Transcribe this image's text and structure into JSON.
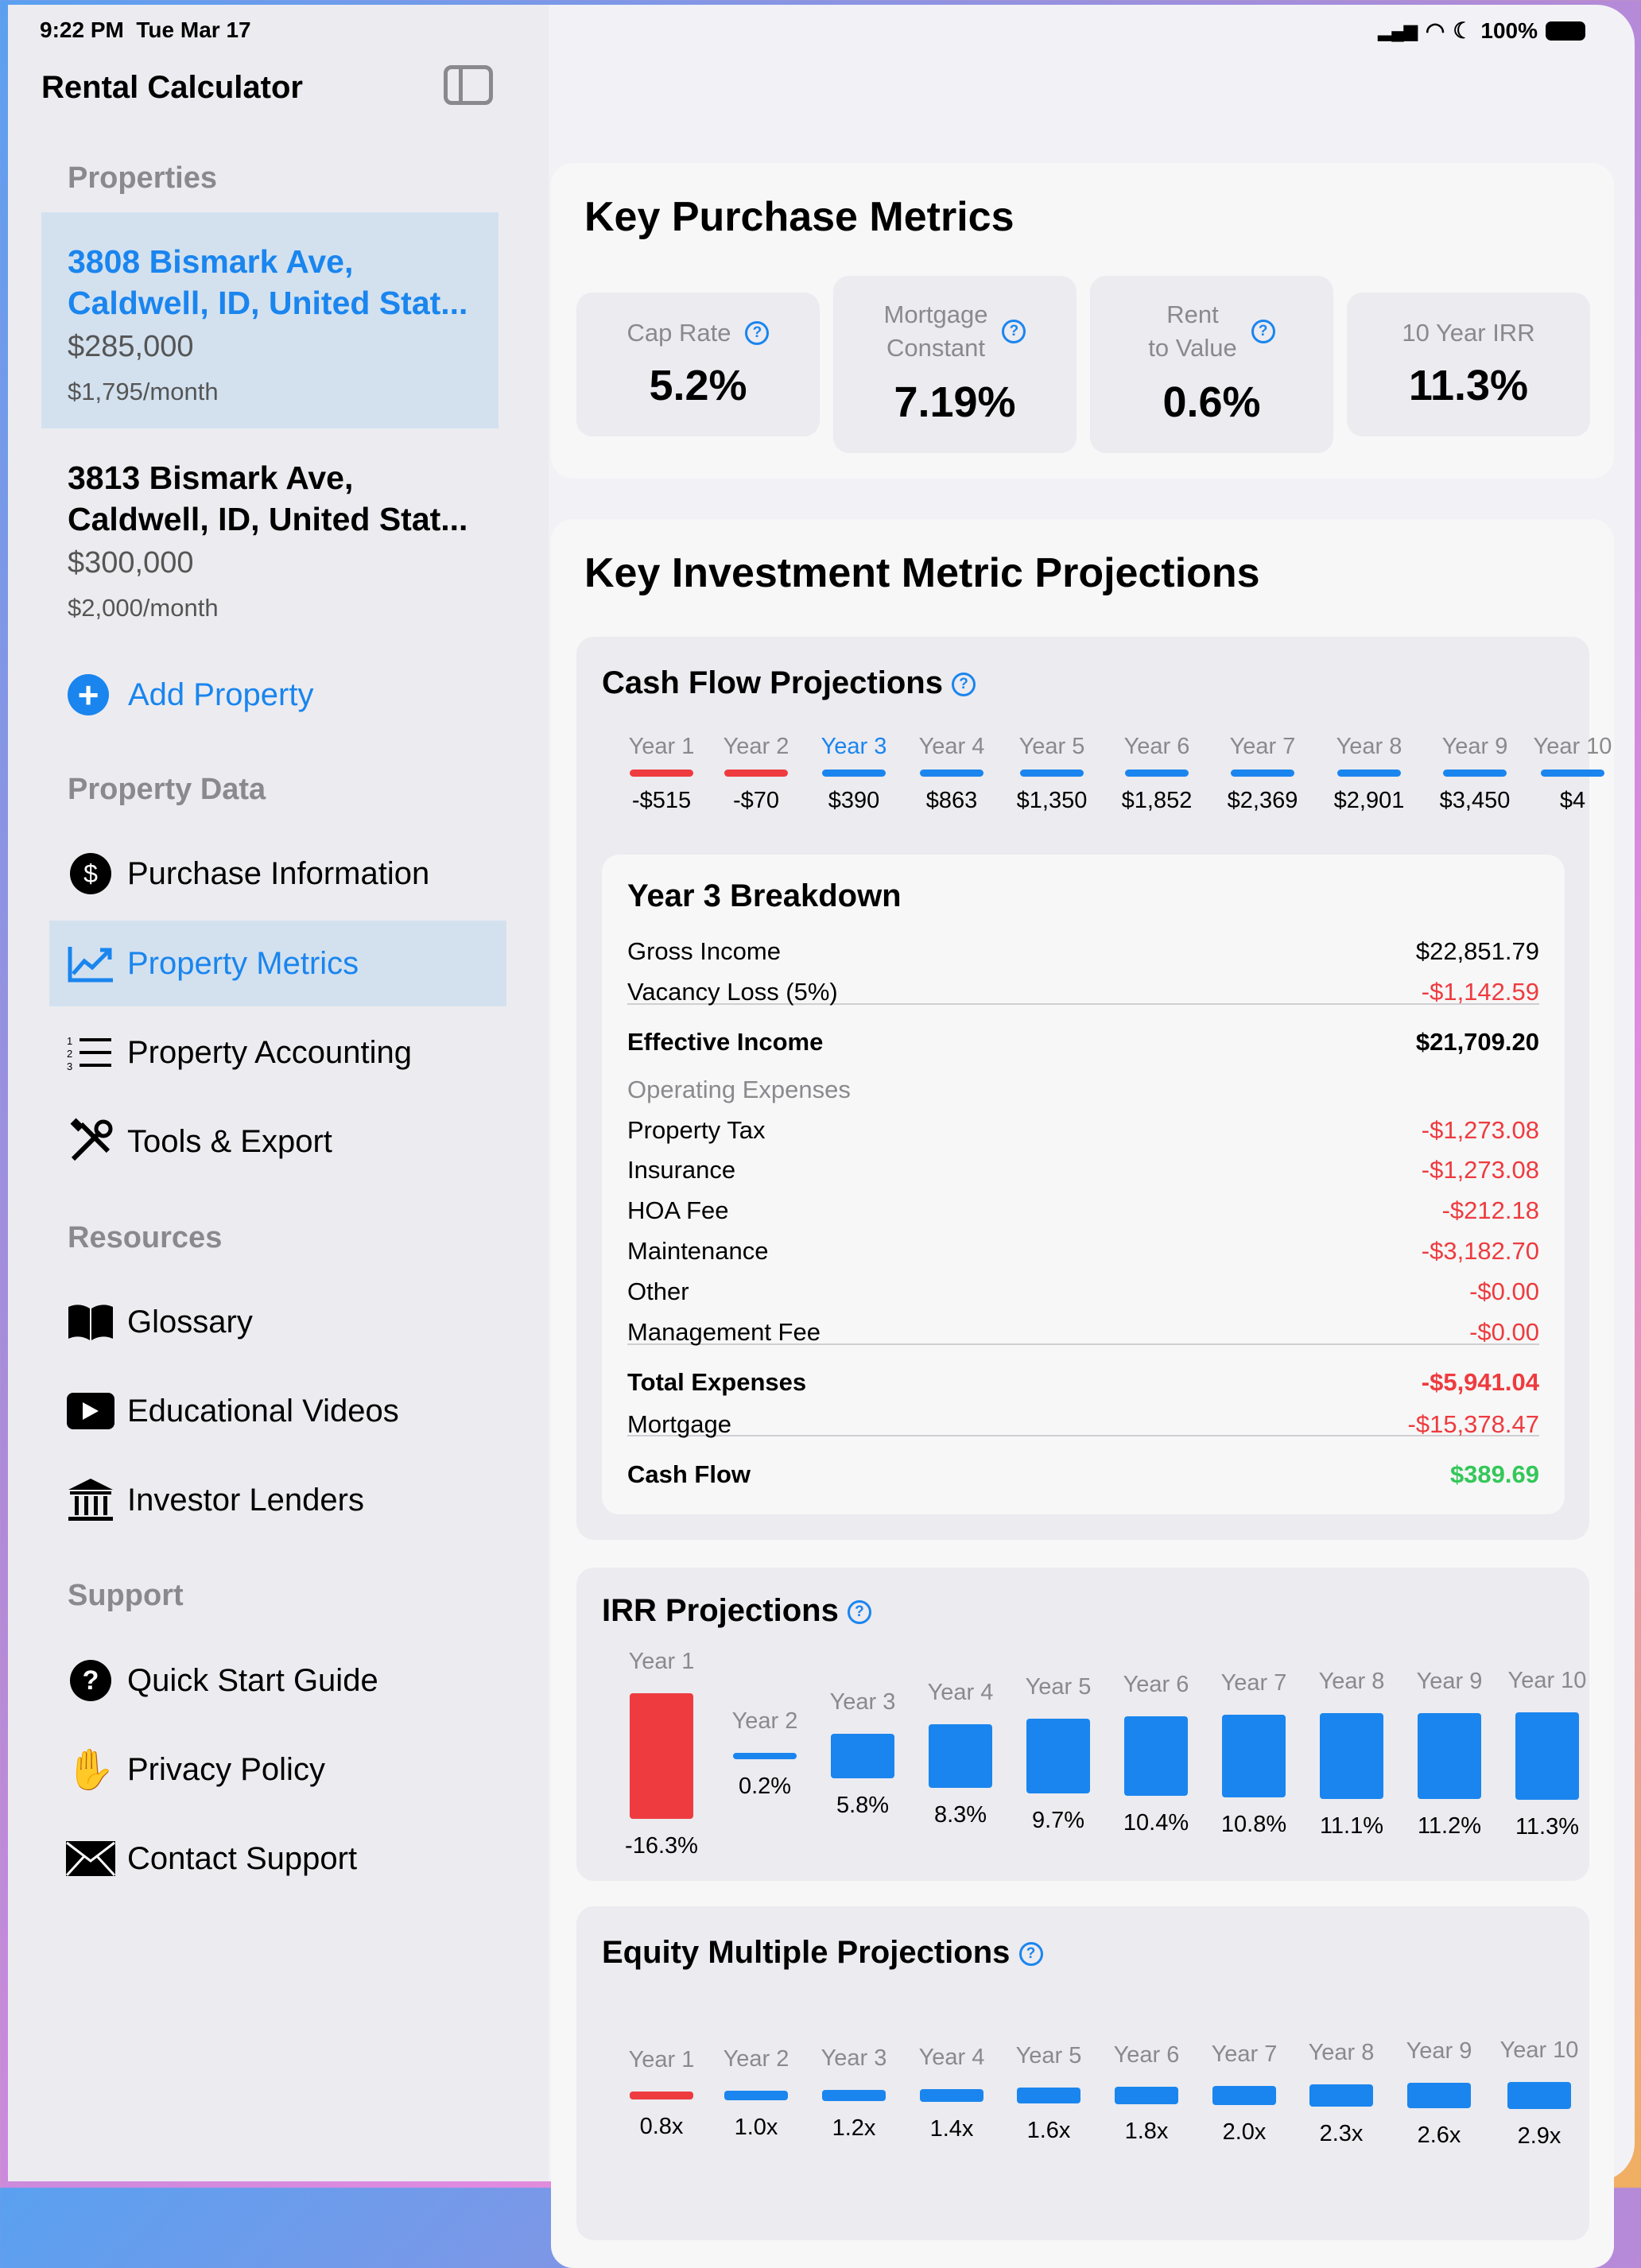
{
  "status": {
    "time": "9:22 PM",
    "date": "Tue Mar 17",
    "battery": "100%"
  },
  "sidebar": {
    "title": "Rental Calculator",
    "properties_header": "Properties",
    "properties": [
      {
        "address1": "3808 Bismark Ave,",
        "address2": "Caldwell, ID, United Stat...",
        "price": "$285,000",
        "rent": "$1,795/month",
        "selected": true
      },
      {
        "address1": "3813 Bismark Ave,",
        "address2": "Caldwell, ID, United Stat...",
        "price": "$300,000",
        "rent": "$2,000/month",
        "selected": false
      }
    ],
    "add_property": "Add Property",
    "property_data_header": "Property Data",
    "property_data": [
      {
        "label": "Purchase Information",
        "icon": "dollar-circle-icon"
      },
      {
        "label": "Property Metrics",
        "icon": "chart-line-icon",
        "selected": true
      },
      {
        "label": "Property Accounting",
        "icon": "numbered-list-icon"
      },
      {
        "label": "Tools & Export",
        "icon": "tools-icon"
      }
    ],
    "resources_header": "Resources",
    "resources": [
      {
        "label": "Glossary",
        "icon": "book-icon"
      },
      {
        "label": "Educational Videos",
        "icon": "play-icon"
      },
      {
        "label": "Investor Lenders",
        "icon": "bank-icon"
      }
    ],
    "support_header": "Support",
    "support": [
      {
        "label": "Quick Start Guide",
        "icon": "question-circle-icon"
      },
      {
        "label": "Privacy Policy",
        "icon": "hand-icon"
      },
      {
        "label": "Contact Support",
        "icon": "envelope-icon"
      }
    ]
  },
  "purchase": {
    "title": "Key Purchase Metrics",
    "metrics": [
      {
        "label1": "Cap Rate",
        "label2": "",
        "value": "5.2%",
        "help": true
      },
      {
        "label1": "Mortgage",
        "label2": "Constant",
        "value": "7.19%",
        "help": true
      },
      {
        "label1": "Rent",
        "label2": "to Value",
        "value": "0.6%",
        "help": true
      },
      {
        "label1": "10 Year IRR",
        "label2": "",
        "value": "11.3%",
        "help": false
      }
    ]
  },
  "projections": {
    "title": "Key Investment Metric Projections"
  },
  "colors": {
    "accent": "#1a85ee",
    "negative": "#ee3b3f",
    "positive": "#34c759"
  },
  "cash_flow": {
    "title": "Cash Flow Projections",
    "selected_year": 3,
    "years": [
      "Year 1",
      "Year 2",
      "Year 3",
      "Year 4",
      "Year 5",
      "Year 6",
      "Year 7",
      "Year 8",
      "Year 9",
      "Year 10"
    ],
    "values": [
      "-$515",
      "-$70",
      "$390",
      "$863",
      "$1,350",
      "$1,852",
      "$2,369",
      "$2,901",
      "$3,450",
      "$4"
    ],
    "negative": [
      true,
      true,
      false,
      false,
      false,
      false,
      false,
      false,
      false,
      false
    ]
  },
  "breakdown": {
    "title": "Year 3 Breakdown",
    "rows": [
      {
        "label": "Gross Income",
        "value": "$22,851.79",
        "style": "normal"
      },
      {
        "label": "Vacancy Loss (5%)",
        "value": "-$1,142.59",
        "style": "neg"
      },
      {
        "label": "Effective Income",
        "value": "$21,709.20",
        "style": "bold"
      },
      {
        "label": "Operating Expenses",
        "value": "",
        "style": "header"
      },
      {
        "label": "Property Tax",
        "value": "-$1,273.08",
        "style": "neg"
      },
      {
        "label": "Insurance",
        "value": "-$1,273.08",
        "style": "neg"
      },
      {
        "label": "HOA Fee",
        "value": "-$212.18",
        "style": "neg"
      },
      {
        "label": "Maintenance",
        "value": "-$3,182.70",
        "style": "neg"
      },
      {
        "label": "Other",
        "value": "-$0.00",
        "style": "neg"
      },
      {
        "label": "Management Fee",
        "value": "-$0.00",
        "style": "neg"
      },
      {
        "label": "Total Expenses",
        "value": "-$5,941.04",
        "style": "boldneg"
      },
      {
        "label": "Mortgage",
        "value": "-$15,378.47",
        "style": "neg"
      },
      {
        "label": "Cash Flow",
        "value": "$389.69",
        "style": "boldpos"
      }
    ]
  },
  "irr": {
    "title": "IRR Projections",
    "years": [
      "Year 1",
      "Year 2",
      "Year 3",
      "Year 4",
      "Year 5",
      "Year 6",
      "Year 7",
      "Year 8",
      "Year 9",
      "Year 10"
    ],
    "values": [
      -16.3,
      0.2,
      5.8,
      8.3,
      9.7,
      10.4,
      10.8,
      11.1,
      11.2,
      11.3
    ],
    "labels": [
      "-16.3%",
      "0.2%",
      "5.8%",
      "8.3%",
      "9.7%",
      "10.4%",
      "10.8%",
      "11.1%",
      "11.2%",
      "11.3%"
    ]
  },
  "equity": {
    "title": "Equity Multiple Projections",
    "years": [
      "Year 1",
      "Year 2",
      "Year 3",
      "Year 4",
      "Year 5",
      "Year 6",
      "Year 7",
      "Year 8",
      "Year 9",
      "Year 10"
    ],
    "values": [
      0.8,
      1.0,
      1.2,
      1.4,
      1.6,
      1.8,
      2.0,
      2.3,
      2.6,
      2.9
    ],
    "labels": [
      "0.8x",
      "1.0x",
      "1.2x",
      "1.4x",
      "1.6x",
      "1.8x",
      "2.0x",
      "2.3x",
      "2.6x",
      "2.9x"
    ]
  }
}
